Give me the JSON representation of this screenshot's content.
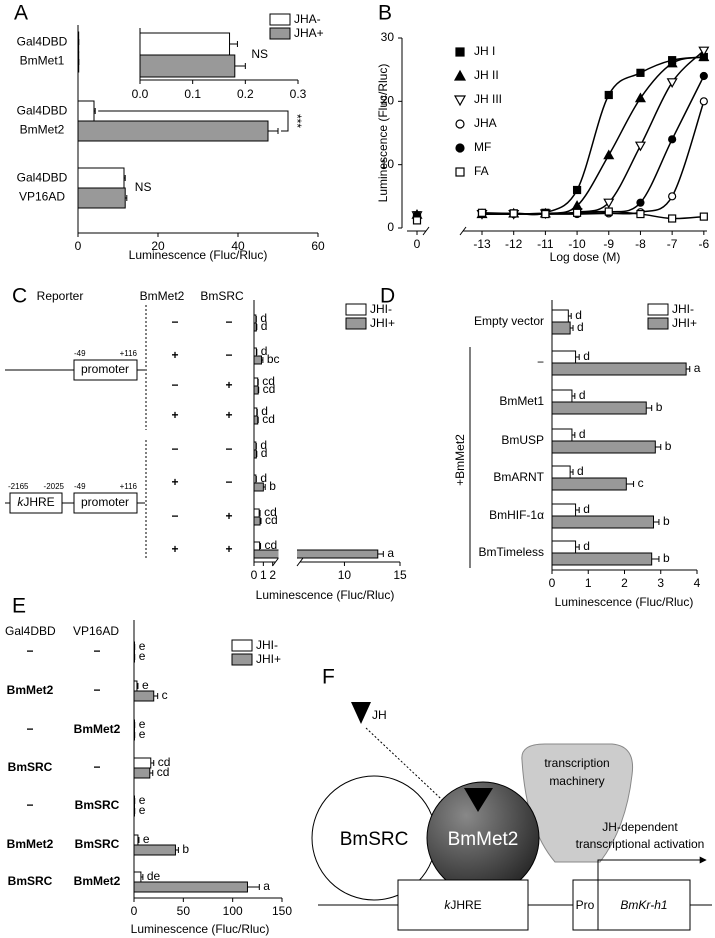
{
  "chart_data": [
    {
      "type": "hbar",
      "panel": "A",
      "xlabel": "Luminescence (Fluc/Rluc)",
      "legend": "upper right",
      "categories": [
        [
          "Gal4DBD",
          "BmMet1"
        ],
        [
          "Gal4DBD",
          "BmMet2"
        ],
        [
          "Gal4DBD",
          "VP16AD"
        ]
      ],
      "series": [
        {
          "name": "JHA-",
          "color": "#ffffff",
          "values": [
            0.17,
            4,
            11.5
          ],
          "errors": [
            0.02,
            0.3,
            0.3
          ]
        },
        {
          "name": "JHA+",
          "color": "#999999",
          "values": [
            0.18,
            47.5,
            11.8
          ],
          "errors": [
            0.02,
            2.5,
            0.4
          ]
        }
      ],
      "annotations": [
        null,
        "***",
        "NS"
      ],
      "xlim": [
        0,
        60
      ],
      "xticks": [
        0,
        20,
        40,
        60
      ],
      "inset": {
        "values": [
          0.17,
          0.18
        ],
        "errors": [
          0.015,
          0.02
        ],
        "annotation": "NS",
        "xlim": [
          0,
          0.3
        ],
        "xticks": [
          {
            "value": 0,
            "label": "0.0"
          },
          0.1,
          0.2,
          0.3
        ]
      }
    },
    {
      "type": "scatter",
      "panel": "B",
      "xlabel": "Log dose (M)",
      "ylabel": "Luminescence (Fluc/Rluc)",
      "x": [
        -13,
        -12,
        -11,
        -10,
        -9,
        -8,
        -7,
        -6
      ],
      "control_label": "0",
      "xlim": [
        -13.6,
        -5.9
      ],
      "xticks": [
        -13,
        -12,
        -11,
        -10,
        -9,
        -8,
        -7,
        -6
      ],
      "ylim": [
        0,
        30
      ],
      "yticks": [
        0,
        10,
        20,
        30
      ],
      "legend": "upper left",
      "series": [
        {
          "name": "JH I",
          "marker": "square",
          "color": "#000000",
          "control_value": 2,
          "values": [
            2.3,
            2.3,
            2.4,
            6,
            21,
            24.5,
            26.5,
            27
          ]
        },
        {
          "name": "JH II",
          "marker": "triangle",
          "color": "#000000",
          "control_value": 2.1,
          "values": [
            2.2,
            2.3,
            2.3,
            3.5,
            11.5,
            20.5,
            26,
            27
          ]
        },
        {
          "name": "JH III",
          "marker": "triangle-down",
          "color": "#ffffff",
          "control_value": 2,
          "values": [
            2.2,
            2.2,
            2.3,
            2.5,
            4,
            13,
            23,
            28
          ]
        },
        {
          "name": "JHA",
          "marker": "circle",
          "color": "#ffffff",
          "control_value": 1.9,
          "values": [
            2.2,
            2.2,
            2.2,
            2.2,
            2.3,
            2.5,
            5,
            20
          ]
        },
        {
          "name": "MF",
          "marker": "circle",
          "color": "#000000",
          "control_value": 2,
          "values": [
            2.2,
            2.2,
            2.3,
            2.3,
            2.5,
            4,
            14,
            24
          ]
        },
        {
          "name": "FA",
          "marker": "square",
          "color": "#ffffff",
          "control_value": 1.2,
          "values": [
            2.4,
            2.3,
            2.2,
            2.4,
            2.6,
            2.2,
            1.5,
            1.8
          ]
        }
      ]
    },
    {
      "type": "hbar",
      "panel": "C",
      "xlabel": "Luminescence (Fluc/Rluc)",
      "legend": "upper right",
      "xlim": [
        0,
        15
      ],
      "xbreak": [
        2.3,
        6
      ],
      "xticks": [
        0,
        1,
        2,
        10,
        15
      ],
      "conditions": {
        "headers": [
          "Reporter",
          "BmMet2",
          "BmSRC"
        ],
        "rows": [
          [
            "−",
            "−"
          ],
          [
            "+",
            "−"
          ],
          [
            "−",
            "+"
          ],
          [
            "+",
            "+"
          ],
          [
            "−",
            "−"
          ],
          [
            "+",
            "−"
          ],
          [
            "−",
            "+"
          ],
          [
            "+",
            "+"
          ]
        ]
      },
      "reporter": {
        "promoter": "promoter",
        "promoter_ends": [
          "-49",
          "+116"
        ],
        "element": [
          "k",
          "JHRE"
        ],
        "element_ends": [
          "-2165",
          "-2025"
        ]
      },
      "series": [
        {
          "name": "JHI-",
          "color": "#ffffff",
          "values": [
            0.2,
            0.25,
            0.4,
            0.3,
            0.2,
            0.2,
            0.55,
            0.6
          ],
          "errors": [
            0.05,
            0.05,
            0.05,
            0.05,
            0.05,
            0.05,
            0.1,
            0.1
          ],
          "letters": [
            "d",
            "d",
            "cd",
            "d",
            "d",
            "d",
            "cd",
            "cd"
          ]
        },
        {
          "name": "JHI+",
          "color": "#999999",
          "values": [
            0.25,
            0.8,
            0.45,
            0.4,
            0.25,
            1.0,
            0.65,
            13
          ],
          "errors": [
            0.05,
            0.15,
            0.05,
            0.05,
            0.05,
            0.2,
            0.1,
            0.5
          ],
          "letters": [
            "d",
            "bc",
            "cd",
            "cd",
            "d",
            "b",
            "cd",
            "a"
          ]
        }
      ]
    },
    {
      "type": "hbar",
      "panel": "D",
      "xlabel": "Luminescence (Fluc/Rluc)",
      "legend": "upper right",
      "categories": [
        "Empty vector",
        "−",
        "BmMet1",
        "BmUSP",
        "BmARNT",
        "BmHIF-1α",
        "BmTimeless"
      ],
      "group": "+BmMet2",
      "xlim": [
        0,
        4
      ],
      "xticks": [
        0,
        1,
        2,
        3,
        4
      ],
      "series": [
        {
          "name": "JHI-",
          "color": "#ffffff",
          "values": [
            0.45,
            0.65,
            0.55,
            0.55,
            0.5,
            0.65,
            0.65
          ],
          "errors": [
            0.08,
            0.1,
            0.08,
            0.08,
            0.08,
            0.1,
            0.1
          ],
          "letters": [
            "d",
            "d",
            "d",
            "d",
            "d",
            "d",
            "d"
          ]
        },
        {
          "name": "JHI+",
          "color": "#999999",
          "values": [
            0.5,
            3.7,
            2.6,
            2.85,
            2.05,
            2.8,
            2.75
          ],
          "errors": [
            0.08,
            0.1,
            0.15,
            0.15,
            0.2,
            0.15,
            0.2
          ],
          "letters": [
            "d",
            "a",
            "b",
            "b",
            "c",
            "b",
            "b"
          ]
        }
      ]
    },
    {
      "type": "hbar",
      "panel": "E",
      "xlabel": "Luminescence (Fluc/Rluc)",
      "legend": "upper right",
      "xlim": [
        0,
        150
      ],
      "xticks": [
        0,
        50,
        100,
        150
      ],
      "conditions": {
        "headers": [
          "Gal4DBD",
          "VP16AD"
        ],
        "rows": [
          [
            "−",
            "−"
          ],
          [
            "BmMet2",
            "−"
          ],
          [
            "−",
            "BmMet2"
          ],
          [
            "BmSRC",
            "−"
          ],
          [
            "−",
            "BmSRC"
          ],
          [
            "BmMet2",
            "BmSRC"
          ],
          [
            "BmSRC",
            "BmMet2"
          ]
        ]
      },
      "series": [
        {
          "name": "JHI-",
          "color": "#ffffff",
          "values": [
            0.5,
            3,
            0.5,
            17,
            0.5,
            4,
            7
          ],
          "errors": [
            0.2,
            1,
            0.2,
            3,
            0.2,
            1,
            2
          ],
          "letters": [
            "e",
            "e",
            "e",
            "cd",
            "e",
            "e",
            "de"
          ]
        },
        {
          "name": "JHI+",
          "color": "#999999",
          "values": [
            0.5,
            20,
            0.5,
            16,
            0.5,
            42,
            115
          ],
          "errors": [
            0.2,
            4,
            0.2,
            3,
            0.2,
            3,
            12
          ],
          "letters": [
            "e",
            "c",
            "e",
            "cd",
            "e",
            "b",
            "a"
          ]
        }
      ]
    }
  ],
  "diagram": {
    "panel": "F",
    "ligand": "JH",
    "proteins": [
      "BmSRC",
      "BmMet2"
    ],
    "machinery": [
      "transcription",
      "machinery"
    ],
    "activation": [
      "JH-dependent",
      "transcriptional activation"
    ],
    "response_element": [
      "k",
      "JHRE"
    ],
    "promoter": "Pro",
    "gene": "BmKr-h1"
  }
}
